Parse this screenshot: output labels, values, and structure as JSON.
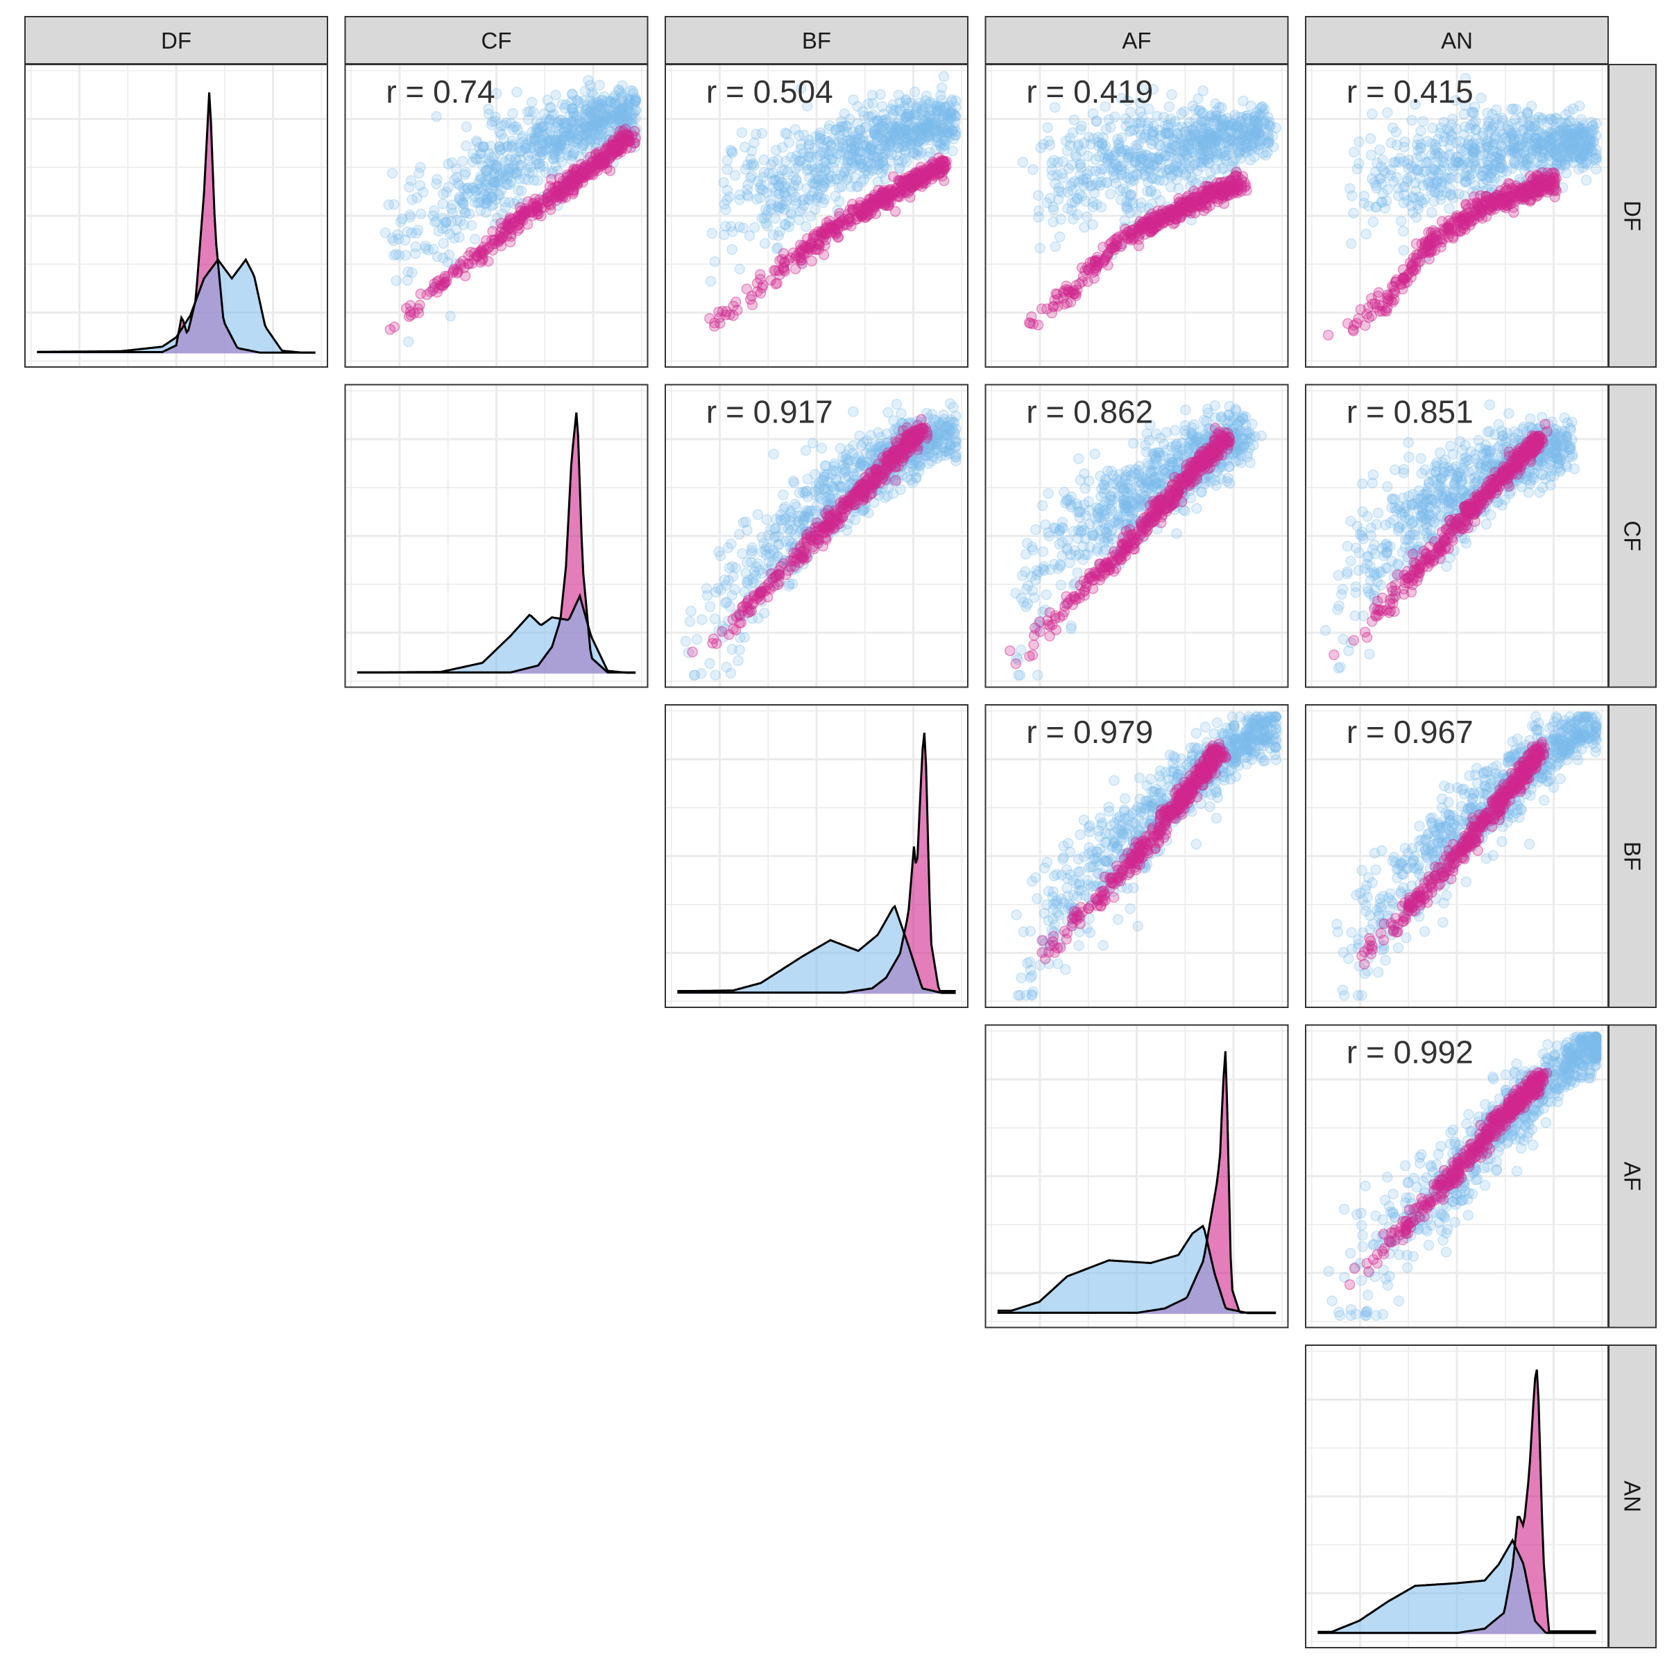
{
  "chart_data": {
    "type": "scatter-matrix",
    "variables": [
      "DF",
      "CF",
      "BF",
      "AF",
      "AN"
    ],
    "column_strips": [
      "DF",
      "CF",
      "BF",
      "AF",
      "AN"
    ],
    "row_strips": [
      "DF",
      "CF",
      "BF",
      "AF",
      "AN"
    ],
    "groups": [
      {
        "key": "blue",
        "color": "#7DBCEC"
      },
      {
        "key": "magenta",
        "color": "#D1288E"
      }
    ],
    "colors": {
      "blue": "#7DBCEC",
      "magenta": "#D1288E",
      "strip": "#D9D9D9",
      "grid": "#EBEBEB",
      "line": "#000000"
    },
    "grid": true,
    "legend": "none",
    "correlations": [
      {
        "row": "DF",
        "col": "CF",
        "label": "r = 0.74",
        "r": 0.74
      },
      {
        "row": "DF",
        "col": "BF",
        "label": "r = 0.504",
        "r": 0.504
      },
      {
        "row": "DF",
        "col": "AF",
        "label": "r = 0.419",
        "r": 0.419
      },
      {
        "row": "DF",
        "col": "AN",
        "label": "r = 0.415",
        "r": 0.415
      },
      {
        "row": "CF",
        "col": "BF",
        "label": "r = 0.917",
        "r": 0.917
      },
      {
        "row": "CF",
        "col": "AF",
        "label": "r = 0.862",
        "r": 0.862
      },
      {
        "row": "CF",
        "col": "AN",
        "label": "r = 0.851",
        "r": 0.851
      },
      {
        "row": "BF",
        "col": "AF",
        "label": "r = 0.979",
        "r": 0.979
      },
      {
        "row": "BF",
        "col": "AN",
        "label": "r = 0.967",
        "r": 0.967
      },
      {
        "row": "AF",
        "col": "AN",
        "label": "r = 0.992",
        "r": 0.992
      }
    ],
    "densities": [
      {
        "var": "DF",
        "blue": [
          [
            0.05,
            0.006
          ],
          [
            0.3,
            0.008
          ],
          [
            0.45,
            0.025
          ],
          [
            0.5,
            0.06
          ],
          [
            0.55,
            0.14
          ],
          [
            0.6,
            0.28
          ],
          [
            0.65,
            0.35
          ],
          [
            0.7,
            0.28
          ],
          [
            0.75,
            0.35
          ],
          [
            0.78,
            0.29
          ],
          [
            0.82,
            0.1
          ],
          [
            0.88,
            0.01
          ],
          [
            0.95,
            0.003
          ]
        ],
        "magenta": [
          [
            0.45,
            0.005
          ],
          [
            0.5,
            0.03
          ],
          [
            0.52,
            0.14
          ],
          [
            0.54,
            0.07
          ],
          [
            0.57,
            0.2
          ],
          [
            0.6,
            0.6
          ],
          [
            0.62,
            1.0
          ],
          [
            0.64,
            0.45
          ],
          [
            0.67,
            0.12
          ],
          [
            0.72,
            0.02
          ],
          [
            0.8,
            0.003
          ]
        ]
      },
      {
        "var": "CF",
        "blue": [
          [
            0.05,
            0.004
          ],
          [
            0.3,
            0.006
          ],
          [
            0.45,
            0.04
          ],
          [
            0.55,
            0.14
          ],
          [
            0.62,
            0.22
          ],
          [
            0.66,
            0.18
          ],
          [
            0.7,
            0.21
          ],
          [
            0.76,
            0.2
          ],
          [
            0.8,
            0.29
          ],
          [
            0.84,
            0.14
          ],
          [
            0.9,
            0.01
          ],
          [
            0.97,
            0.003
          ]
        ],
        "magenta": [
          [
            0.55,
            0.004
          ],
          [
            0.65,
            0.03
          ],
          [
            0.7,
            0.1
          ],
          [
            0.73,
            0.2
          ],
          [
            0.75,
            0.4
          ],
          [
            0.77,
            0.8
          ],
          [
            0.79,
            1.0
          ],
          [
            0.81,
            0.4
          ],
          [
            0.84,
            0.06
          ],
          [
            0.9,
            0.004
          ]
        ]
      },
      {
        "var": "BF",
        "blue": [
          [
            0.05,
            0.01
          ],
          [
            0.2,
            0.012
          ],
          [
            0.3,
            0.04
          ],
          [
            0.45,
            0.14
          ],
          [
            0.55,
            0.2
          ],
          [
            0.65,
            0.16
          ],
          [
            0.72,
            0.22
          ],
          [
            0.78,
            0.33
          ],
          [
            0.83,
            0.18
          ],
          [
            0.88,
            0.02
          ],
          [
            0.95,
            0.003
          ]
        ],
        "magenta": [
          [
            0.6,
            0.004
          ],
          [
            0.7,
            0.02
          ],
          [
            0.75,
            0.06
          ],
          [
            0.8,
            0.15
          ],
          [
            0.83,
            0.3
          ],
          [
            0.85,
            0.55
          ],
          [
            0.86,
            0.45
          ],
          [
            0.88,
            0.9
          ],
          [
            0.89,
            1.0
          ],
          [
            0.91,
            0.2
          ],
          [
            0.94,
            0.01
          ]
        ]
      },
      {
        "var": "AF",
        "blue": [
          [
            0.05,
            0.012
          ],
          [
            0.15,
            0.045
          ],
          [
            0.25,
            0.14
          ],
          [
            0.4,
            0.2
          ],
          [
            0.55,
            0.19
          ],
          [
            0.65,
            0.22
          ],
          [
            0.7,
            0.3
          ],
          [
            0.74,
            0.33
          ],
          [
            0.78,
            0.15
          ],
          [
            0.82,
            0.02
          ],
          [
            0.9,
            0.003
          ]
        ],
        "magenta": [
          [
            0.5,
            0.004
          ],
          [
            0.6,
            0.02
          ],
          [
            0.68,
            0.06
          ],
          [
            0.74,
            0.2
          ],
          [
            0.77,
            0.38
          ],
          [
            0.79,
            0.5
          ],
          [
            0.8,
            0.6
          ],
          [
            0.81,
            0.85
          ],
          [
            0.82,
            1.0
          ],
          [
            0.84,
            0.1
          ],
          [
            0.87,
            0.005
          ]
        ]
      },
      {
        "var": "AN",
        "blue": [
          [
            0.05,
            0.008
          ],
          [
            0.15,
            0.05
          ],
          [
            0.25,
            0.12
          ],
          [
            0.35,
            0.18
          ],
          [
            0.5,
            0.19
          ],
          [
            0.6,
            0.2
          ],
          [
            0.65,
            0.26
          ],
          [
            0.7,
            0.35
          ],
          [
            0.74,
            0.26
          ],
          [
            0.78,
            0.05
          ],
          [
            0.82,
            0.004
          ]
        ],
        "magenta": [
          [
            0.5,
            0.004
          ],
          [
            0.6,
            0.02
          ],
          [
            0.67,
            0.08
          ],
          [
            0.7,
            0.25
          ],
          [
            0.72,
            0.45
          ],
          [
            0.74,
            0.4
          ],
          [
            0.76,
            0.6
          ],
          [
            0.78,
            0.95
          ],
          [
            0.79,
            1.0
          ],
          [
            0.81,
            0.3
          ],
          [
            0.83,
            0.01
          ]
        ]
      }
    ],
    "scatter_trend": [
      {
        "row": "DF",
        "col": "CF",
        "blue": [
          [
            0.1,
            0.38
          ],
          [
            0.4,
            0.6
          ],
          [
            0.6,
            0.72
          ],
          [
            0.8,
            0.82
          ],
          [
            0.95,
            0.86
          ]
        ],
        "magenta": [
          [
            0.05,
            0.05
          ],
          [
            0.3,
            0.25
          ],
          [
            0.6,
            0.5
          ],
          [
            0.9,
            0.72
          ],
          [
            0.98,
            0.78
          ]
        ]
      },
      {
        "row": "DF",
        "col": "BF",
        "blue": [
          [
            0.1,
            0.48
          ],
          [
            0.4,
            0.62
          ],
          [
            0.6,
            0.72
          ],
          [
            0.8,
            0.8
          ],
          [
            0.95,
            0.84
          ]
        ],
        "magenta": [
          [
            0.05,
            0.05
          ],
          [
            0.3,
            0.25
          ],
          [
            0.55,
            0.45
          ],
          [
            0.8,
            0.6
          ],
          [
            0.96,
            0.68
          ]
        ]
      },
      {
        "row": "DF",
        "col": "AF",
        "blue": [
          [
            0.1,
            0.55
          ],
          [
            0.3,
            0.66
          ],
          [
            0.5,
            0.7
          ],
          [
            0.75,
            0.76
          ],
          [
            0.92,
            0.8
          ]
        ],
        "magenta": [
          [
            0.05,
            0.05
          ],
          [
            0.25,
            0.22
          ],
          [
            0.45,
            0.42
          ],
          [
            0.7,
            0.55
          ],
          [
            0.88,
            0.62
          ]
        ]
      },
      {
        "row": "DF",
        "col": "AN",
        "blue": [
          [
            0.1,
            0.55
          ],
          [
            0.3,
            0.64
          ],
          [
            0.5,
            0.7
          ],
          [
            0.75,
            0.75
          ],
          [
            0.95,
            0.76
          ]
        ],
        "magenta": [
          [
            0.05,
            0.05
          ],
          [
            0.25,
            0.2
          ],
          [
            0.4,
            0.4
          ],
          [
            0.6,
            0.54
          ],
          [
            0.85,
            0.62
          ]
        ]
      },
      {
        "row": "CF",
        "col": "BF",
        "blue": [
          [
            0.05,
            0.05
          ],
          [
            0.2,
            0.3
          ],
          [
            0.4,
            0.52
          ],
          [
            0.6,
            0.68
          ],
          [
            0.8,
            0.8
          ],
          [
            0.95,
            0.86
          ]
        ],
        "magenta": [
          [
            0.05,
            0.05
          ],
          [
            0.3,
            0.28
          ],
          [
            0.5,
            0.5
          ],
          [
            0.7,
            0.7
          ],
          [
            0.88,
            0.88
          ]
        ]
      },
      {
        "row": "CF",
        "col": "AF",
        "blue": [
          [
            0.05,
            0.1
          ],
          [
            0.2,
            0.45
          ],
          [
            0.4,
            0.6
          ],
          [
            0.6,
            0.72
          ],
          [
            0.85,
            0.84
          ]
        ],
        "magenta": [
          [
            0.05,
            0.05
          ],
          [
            0.25,
            0.25
          ],
          [
            0.45,
            0.45
          ],
          [
            0.65,
            0.68
          ],
          [
            0.82,
            0.85
          ]
        ]
      },
      {
        "row": "CF",
        "col": "AN",
        "blue": [
          [
            0.05,
            0.1
          ],
          [
            0.2,
            0.45
          ],
          [
            0.4,
            0.6
          ],
          [
            0.6,
            0.72
          ],
          [
            0.85,
            0.82
          ]
        ],
        "magenta": [
          [
            0.05,
            0.05
          ],
          [
            0.25,
            0.25
          ],
          [
            0.45,
            0.48
          ],
          [
            0.65,
            0.7
          ],
          [
            0.8,
            0.85
          ]
        ]
      },
      {
        "row": "BF",
        "col": "AF",
        "blue": [
          [
            0.05,
            0.05
          ],
          [
            0.2,
            0.3
          ],
          [
            0.4,
            0.5
          ],
          [
            0.6,
            0.68
          ],
          [
            0.8,
            0.85
          ],
          [
            0.95,
            0.95
          ]
        ],
        "magenta": [
          [
            0.1,
            0.08
          ],
          [
            0.3,
            0.28
          ],
          [
            0.5,
            0.5
          ],
          [
            0.7,
            0.75
          ],
          [
            0.8,
            0.88
          ]
        ]
      },
      {
        "row": "BF",
        "col": "AN",
        "blue": [
          [
            0.05,
            0.05
          ],
          [
            0.2,
            0.3
          ],
          [
            0.4,
            0.5
          ],
          [
            0.6,
            0.68
          ],
          [
            0.8,
            0.85
          ],
          [
            0.95,
            0.95
          ]
        ],
        "magenta": [
          [
            0.1,
            0.08
          ],
          [
            0.3,
            0.28
          ],
          [
            0.5,
            0.5
          ],
          [
            0.7,
            0.75
          ],
          [
            0.8,
            0.88
          ]
        ]
      },
      {
        "row": "AF",
        "col": "AN",
        "blue": [
          [
            0.05,
            0.05
          ],
          [
            0.3,
            0.32
          ],
          [
            0.5,
            0.52
          ],
          [
            0.7,
            0.72
          ],
          [
            0.9,
            0.9
          ],
          [
            0.98,
            0.97
          ]
        ],
        "magenta": [
          [
            0.1,
            0.1
          ],
          [
            0.3,
            0.3
          ],
          [
            0.5,
            0.52
          ],
          [
            0.65,
            0.7
          ],
          [
            0.8,
            0.85
          ]
        ]
      }
    ]
  }
}
